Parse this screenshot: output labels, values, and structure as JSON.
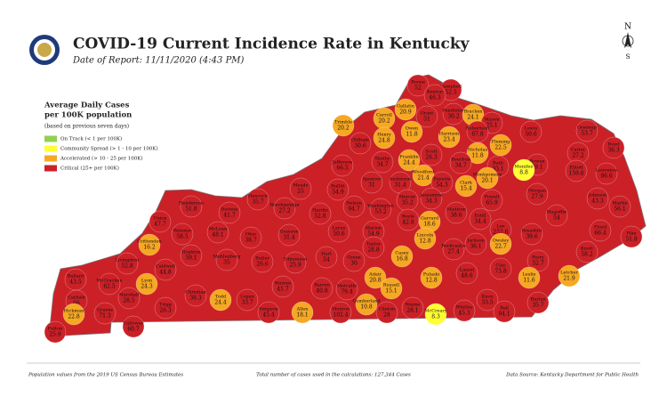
{
  "title": "COVID-19 Current Incidence Rate in Kentucky",
  "date": "Date of Report: 11/11/2020 (4:43 PM)",
  "legend": {
    "title_lines": [
      "Average Daily Cases",
      "per 100K population"
    ],
    "note": "(based on previous seven days)",
    "items": [
      {
        "label": "On Track (< 1 per 100K)",
        "color": "#92d050"
      },
      {
        "label": "Community Spread (> 1 - 10 per 100K)",
        "color": "#ffff33"
      },
      {
        "label": "Accelerated (> 10 - 25 per 100K)",
        "color": "#f7a823"
      },
      {
        "label": "Critical (25+ per 100K)",
        "color": "#cc2027"
      }
    ]
  },
  "counties": [
    {
      "name": "Boone",
      "value": 52,
      "color": "#cc2027",
      "pos": [
        470,
        95
      ]
    },
    {
      "name": "Campbell",
      "value": 52.5,
      "color": "#cc2027",
      "pos": [
        507,
        100
      ]
    },
    {
      "name": "Kenton",
      "value": 46.3,
      "color": "#cc2027",
      "pos": [
        489,
        106
      ]
    },
    {
      "name": "Gallatin",
      "value": 20.9,
      "color": "#f7a823",
      "pos": [
        456,
        122
      ]
    },
    {
      "name": "Trimble",
      "value": 20.2,
      "color": "#f7a823",
      "pos": [
        386,
        140
      ]
    },
    {
      "name": "Carroll",
      "value": 20.2,
      "color": "#f7a823",
      "pos": [
        432,
        132
      ]
    },
    {
      "name": "Grant",
      "value": 51,
      "color": "#cc2027",
      "pos": [
        480,
        130
      ]
    },
    {
      "name": "Pendleton",
      "value": 30.2,
      "color": "#cc2027",
      "pos": [
        510,
        127
      ]
    },
    {
      "name": "Bracken",
      "value": 24.1,
      "color": "#f7a823",
      "pos": [
        532,
        128
      ]
    },
    {
      "name": "Mason",
      "value": 25.1,
      "color": "#cc2027",
      "pos": [
        553,
        137
      ]
    },
    {
      "name": "Robertson",
      "value": 67.8,
      "color": "#cc2027",
      "pos": [
        537,
        147
      ]
    },
    {
      "name": "Owen",
      "value": 11.8,
      "color": "#f7a823",
      "pos": [
        463,
        147
      ]
    },
    {
      "name": "Henry",
      "value": 24.8,
      "color": "#f7a823",
      "pos": [
        432,
        154
      ]
    },
    {
      "name": "Harrison",
      "value": 23.4,
      "color": "#f7a823",
      "pos": [
        505,
        153
      ]
    },
    {
      "name": "Oldham",
      "value": 30.6,
      "color": "#cc2027",
      "pos": [
        405,
        160
      ]
    },
    {
      "name": "Lewis",
      "value": 50.6,
      "color": "#cc2027",
      "pos": [
        597,
        147
      ]
    },
    {
      "name": "Greenup",
      "value": 53.7,
      "color": "#cc2027",
      "pos": [
        660,
        146
      ]
    },
    {
      "name": "Nicholas",
      "value": 11.8,
      "color": "#f7a823",
      "pos": [
        537,
        171
      ]
    },
    {
      "name": "Fleming",
      "value": 22.5,
      "color": "#f7a823",
      "pos": [
        563,
        162
      ]
    },
    {
      "name": "Boyd",
      "value": 36.3,
      "color": "#cc2027",
      "pos": [
        690,
        165
      ]
    },
    {
      "name": "Carter",
      "value": 27.2,
      "color": "#cc2027",
      "pos": [
        650,
        171
      ]
    },
    {
      "name": "Shelby",
      "value": 34.7,
      "color": "#cc2027",
      "pos": [
        430,
        181
      ]
    },
    {
      "name": "Franklin",
      "value": 24.4,
      "color": "#f7a823",
      "pos": [
        460,
        179
      ]
    },
    {
      "name": "Scott",
      "value": 26.3,
      "color": "#cc2027",
      "pos": [
        485,
        173
      ]
    },
    {
      "name": "Bourbon",
      "value": 34.7,
      "color": "#cc2027",
      "pos": [
        518,
        182
      ]
    },
    {
      "name": "Bath",
      "value": 33.1,
      "color": "#cc2027",
      "pos": [
        560,
        186
      ]
    },
    {
      "name": "Rowan",
      "value": 49.1,
      "color": "#cc2027",
      "pos": [
        604,
        184
      ]
    },
    {
      "name": "Jefferson",
      "value": 66.5,
      "color": "#cc2027",
      "pos": [
        385,
        185
      ]
    },
    {
      "name": "Elliott",
      "value": 159.6,
      "color": "#cc2027",
      "pos": [
        648,
        191
      ]
    },
    {
      "name": "Lawrence",
      "value": 86.6,
      "color": "#cc2027",
      "pos": [
        682,
        194
      ]
    },
    {
      "name": "Woodford",
      "value": 21.4,
      "color": "#f7a823",
      "pos": [
        476,
        196
      ]
    },
    {
      "name": "Fayette",
      "value": 54.3,
      "color": "#cc2027",
      "pos": [
        497,
        204
      ]
    },
    {
      "name": "Anderson",
      "value": 31.4,
      "color": "#cc2027",
      "pos": [
        450,
        204
      ]
    },
    {
      "name": "Spencer",
      "value": 31,
      "color": "#cc2027",
      "pos": [
        418,
        204
      ]
    },
    {
      "name": "Clark",
      "value": 15.4,
      "color": "#f7a823",
      "pos": [
        524,
        208
      ]
    },
    {
      "name": "Montgomery",
      "value": 20.1,
      "color": "#f7a823",
      "pos": [
        548,
        199
      ]
    },
    {
      "name": "Menifee",
      "value": 8.8,
      "color": "#ffff33",
      "pos": [
        589,
        190
      ]
    },
    {
      "name": "Bullitt",
      "value": 54.9,
      "color": "#cc2027",
      "pos": [
        380,
        212
      ]
    },
    {
      "name": "Jessamine",
      "value": 34.3,
      "color": "#cc2027",
      "pos": [
        485,
        222
      ]
    },
    {
      "name": "Mercer",
      "value": 35.2,
      "color": "#cc2027",
      "pos": [
        458,
        224
      ]
    },
    {
      "name": "Morgan",
      "value": 27.9,
      "color": "#cc2027",
      "pos": [
        604,
        217
      ]
    },
    {
      "name": "Johnson",
      "value": 43.3,
      "color": "#cc2027",
      "pos": [
        672,
        222
      ]
    },
    {
      "name": "Martin",
      "value": 56.1,
      "color": "#cc2027",
      "pos": [
        697,
        231
      ]
    },
    {
      "name": "Powell",
      "value": 65.9,
      "color": "#cc2027",
      "pos": [
        553,
        224
      ]
    },
    {
      "name": "Madison",
      "value": 38.6,
      "color": "#cc2027",
      "pos": [
        513,
        238
      ]
    },
    {
      "name": "Estill",
      "value": 34.4,
      "color": "#cc2027",
      "pos": [
        540,
        245
      ]
    },
    {
      "name": "Washington",
      "value": 53.2,
      "color": "#cc2027",
      "pos": [
        428,
        234
      ]
    },
    {
      "name": "Nelson",
      "value": 94.7,
      "color": "#cc2027",
      "pos": [
        398,
        231
      ]
    },
    {
      "name": "Meade",
      "value": 25,
      "color": "#cc2027",
      "pos": [
        338,
        211
      ]
    },
    {
      "name": "Hancock",
      "value": 35.7,
      "color": "#cc2027",
      "pos": [
        290,
        223
      ]
    },
    {
      "name": "Breckinridge",
      "value": 27.2,
      "color": "#cc2027",
      "pos": [
        320,
        233
      ]
    },
    {
      "name": "Hardin",
      "value": 52.8,
      "color": "#cc2027",
      "pos": [
        360,
        239
      ]
    },
    {
      "name": "Daviess",
      "value": 41.7,
      "color": "#cc2027",
      "pos": [
        258,
        238
      ]
    },
    {
      "name": "Henderson",
      "value": 51.8,
      "color": "#cc2027",
      "pos": [
        215,
        231
      ]
    },
    {
      "name": "Union",
      "value": 47.7,
      "color": "#cc2027",
      "pos": [
        180,
        248
      ]
    },
    {
      "name": "Boyle",
      "value": 42.8,
      "color": "#cc2027",
      "pos": [
        459,
        246
      ]
    },
    {
      "name": "Garrard",
      "value": 18.6,
      "color": "#f7a823",
      "pos": [
        483,
        248
      ]
    },
    {
      "name": "Lee",
      "value": 252.6,
      "color": "#cc2027",
      "pos": [
        563,
        257
      ]
    },
    {
      "name": "Breathitt",
      "value": 39.6,
      "color": "#cc2027",
      "pos": [
        598,
        262
      ]
    },
    {
      "name": "Magoffin",
      "value": 54,
      "color": "#cc2027",
      "pos": [
        626,
        241
      ]
    },
    {
      "name": "Floyd",
      "value": 66.4,
      "color": "#cc2027",
      "pos": [
        675,
        258
      ]
    },
    {
      "name": "Pike",
      "value": 51.8,
      "color": "#cc2027",
      "pos": [
        710,
        265
      ]
    },
    {
      "name": "Larue",
      "value": 50.6,
      "color": "#cc2027",
      "pos": [
        381,
        259
      ]
    },
    {
      "name": "Marion",
      "value": 54.9,
      "color": "#cc2027",
      "pos": [
        420,
        259
      ]
    },
    {
      "name": "Lincoln",
      "value": 12.8,
      "color": "#f7a823",
      "pos": [
        478,
        267
      ]
    },
    {
      "name": "Jackson",
      "value": 36.1,
      "color": "#cc2027",
      "pos": [
        535,
        273
      ]
    },
    {
      "name": "Owsley",
      "value": 22.7,
      "color": "#f7a823",
      "pos": [
        563,
        273
      ]
    },
    {
      "name": "Webster",
      "value": 58.5,
      "color": "#cc2027",
      "pos": [
        205,
        262
      ]
    },
    {
      "name": "McLean",
      "value": 48.1,
      "color": "#cc2027",
      "pos": [
        245,
        260
      ]
    },
    {
      "name": "Ohio",
      "value": 38.7,
      "color": "#cc2027",
      "pos": [
        282,
        266
      ]
    },
    {
      "name": "Grayson",
      "value": 31.4,
      "color": "#cc2027",
      "pos": [
        325,
        263
      ]
    },
    {
      "name": "Crittenden",
      "value": 16.2,
      "color": "#f7a823",
      "pos": [
        168,
        274
      ]
    },
    {
      "name": "Hopkins",
      "value": 59.1,
      "color": "#cc2027",
      "pos": [
        215,
        286
      ]
    },
    {
      "name": "Muhlenberg",
      "value": 35,
      "color": "#cc2027",
      "pos": [
        255,
        291
      ]
    },
    {
      "name": "Butler",
      "value": 26.6,
      "color": "#cc2027",
      "pos": [
        295,
        293
      ]
    },
    {
      "name": "Edmonson",
      "value": 25.9,
      "color": "#cc2027",
      "pos": [
        332,
        294
      ]
    },
    {
      "name": "Hart",
      "value": 54,
      "color": "#cc2027",
      "pos": [
        367,
        288
      ]
    },
    {
      "name": "Green",
      "value": 30,
      "color": "#cc2027",
      "pos": [
        398,
        292
      ]
    },
    {
      "name": "Taylor",
      "value": 28.8,
      "color": "#cc2027",
      "pos": [
        420,
        277
      ]
    },
    {
      "name": "Casey",
      "value": 16.8,
      "color": "#f7a823",
      "pos": [
        452,
        287
      ]
    },
    {
      "name": "Rockcastle",
      "value": 27.4,
      "color": "#cc2027",
      "pos": [
        510,
        279
      ]
    },
    {
      "name": "Knott",
      "value": 58.2,
      "color": "#cc2027",
      "pos": [
        660,
        282
      ]
    },
    {
      "name": "Perry",
      "value": 52.7,
      "color": "#cc2027",
      "pos": [
        605,
        292
      ]
    },
    {
      "name": "Clay",
      "value": 73.8,
      "color": "#cc2027",
      "pos": [
        563,
        301
      ]
    },
    {
      "name": "Laurel",
      "value": 48.6,
      "color": "#cc2027",
      "pos": [
        525,
        306
      ]
    },
    {
      "name": "Leslie",
      "value": 11.6,
      "color": "#f7a823",
      "pos": [
        595,
        311
      ]
    },
    {
      "name": "Letcher",
      "value": 21.9,
      "color": "#f7a823",
      "pos": [
        640,
        309
      ]
    },
    {
      "name": "Livingston",
      "value": 52.8,
      "color": "#cc2027",
      "pos": [
        143,
        295
      ]
    },
    {
      "name": "Caldwell",
      "value": 44.8,
      "color": "#cc2027",
      "pos": [
        186,
        302
      ]
    },
    {
      "name": "Adair",
      "value": 20.8,
      "color": "#f7a823",
      "pos": [
        422,
        311
      ]
    },
    {
      "name": "Pulaski",
      "value": 12.8,
      "color": "#f7a823",
      "pos": [
        485,
        311
      ]
    },
    {
      "name": "Russell",
      "value": 15.1,
      "color": "#f7a823",
      "pos": [
        440,
        323
      ]
    },
    {
      "name": "Warren",
      "value": 41.7,
      "color": "#cc2027",
      "pos": [
        318,
        321
      ]
    },
    {
      "name": "Barren",
      "value": 40.8,
      "color": "#cc2027",
      "pos": [
        362,
        323
      ]
    },
    {
      "name": "Metcalfe",
      "value": 79.4,
      "color": "#cc2027",
      "pos": [
        390,
        324
      ]
    },
    {
      "name": "Lyon",
      "value": 24.3,
      "color": "#f7a823",
      "pos": [
        165,
        318
      ]
    },
    {
      "name": "Christian",
      "value": 38.3,
      "color": "#cc2027",
      "pos": [
        220,
        331
      ]
    },
    {
      "name": "Todd",
      "value": 24.4,
      "color": "#f7a823",
      "pos": [
        248,
        336
      ]
    },
    {
      "name": "Logan",
      "value": 33.7,
      "color": "#cc2027",
      "pos": [
        278,
        336
      ]
    },
    {
      "name": "Ballard",
      "value": 43.5,
      "color": "#cc2027",
      "pos": [
        85,
        313
      ]
    },
    {
      "name": "McCracken",
      "value": 62.5,
      "color": "#cc2027",
      "pos": [
        123,
        318
      ]
    },
    {
      "name": "Marshall",
      "value": 28.5,
      "color": "#cc2027",
      "pos": [
        145,
        334
      ]
    },
    {
      "name": "Trigg",
      "value": 26.3,
      "color": "#cc2027",
      "pos": [
        186,
        345
      ]
    },
    {
      "name": "Carlisle",
      "value": 66,
      "color": "#cc2027",
      "pos": [
        86,
        337
      ]
    },
    {
      "name": "Graves",
      "value": 71.3,
      "color": "#cc2027",
      "pos": [
        118,
        351
      ]
    },
    {
      "name": "Simpson",
      "value": 45.4,
      "color": "#cc2027",
      "pos": [
        302,
        350
      ]
    },
    {
      "name": "Allen",
      "value": 18.1,
      "color": "#f7a823",
      "pos": [
        340,
        350
      ]
    },
    {
      "name": "Monroe",
      "value": 102.4,
      "color": "#cc2027",
      "pos": [
        383,
        350
      ]
    },
    {
      "name": "Cumberland",
      "value": 10.8,
      "color": "#f7a823",
      "pos": [
        412,
        341
      ]
    },
    {
      "name": "Clinton",
      "value": 28,
      "color": "#cc2027",
      "pos": [
        435,
        350
      ]
    },
    {
      "name": "Wayne",
      "value": 28.1,
      "color": "#cc2027",
      "pos": [
        464,
        345
      ]
    },
    {
      "name": "McCreary",
      "value": 8.3,
      "color": "#ffff33",
      "pos": [
        490,
        352
      ]
    },
    {
      "name": "Whitley",
      "value": 45.3,
      "color": "#cc2027",
      "pos": [
        522,
        348
      ]
    },
    {
      "name": "Knox",
      "value": 33.5,
      "color": "#cc2027",
      "pos": [
        548,
        336
      ]
    },
    {
      "name": "Bell",
      "value": 94.1,
      "color": "#cc2027",
      "pos": [
        567,
        349
      ]
    },
    {
      "name": "Harlan",
      "value": 35.7,
      "color": "#cc2027",
      "pos": [
        605,
        339
      ]
    },
    {
      "name": "Hickman",
      "value": 22.8,
      "color": "#f7a823",
      "pos": [
        83,
        352
      ]
    },
    {
      "name": "Calloway",
      "value": 60.7,
      "color": "#cc2027",
      "pos": [
        150,
        366
      ]
    },
    {
      "name": "Fulton",
      "value": 25.9,
      "color": "#cc2027",
      "pos": [
        62,
        372
      ]
    }
  ],
  "footer": {
    "left": "Population values from the 2019 US Census Bureau Estimates",
    "center": "Total number of cases used in the calculations: 127,344 Cases",
    "right": "Data Source: Kentucky Department for Public Health"
  }
}
